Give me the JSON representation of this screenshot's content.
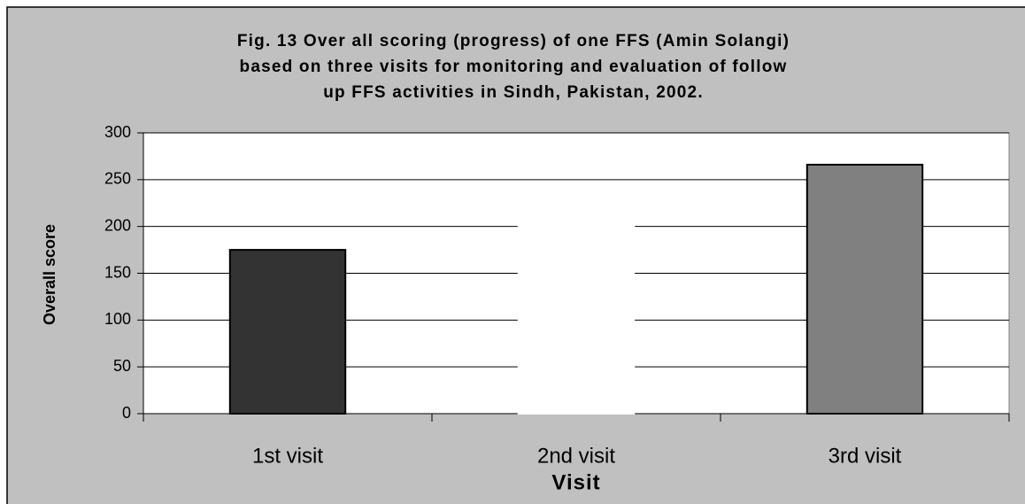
{
  "chart_data": {
    "type": "bar",
    "title": [
      "Fig. 13 Over all scoring (progress) of one FFS (Amin Solangi)",
      "based on three visits for monitoring and evaluation of follow",
      "up FFS activities in Sindh, Pakistan, 2002."
    ],
    "x_label": "Visit",
    "y_label": "Overall score",
    "categories": [
      "1st visit",
      "2nd visit",
      "3rd visit"
    ],
    "values": [
      175,
      240,
      266
    ],
    "colors": [
      "#333333",
      "#ffffff",
      "#808080"
    ],
    "edgecolors": [
      "#000000",
      "#ffffff",
      "#000000"
    ],
    "ylim": [
      0,
      300
    ],
    "yticks": [
      0,
      50,
      100,
      150,
      200,
      250,
      300
    ],
    "grid": true
  }
}
